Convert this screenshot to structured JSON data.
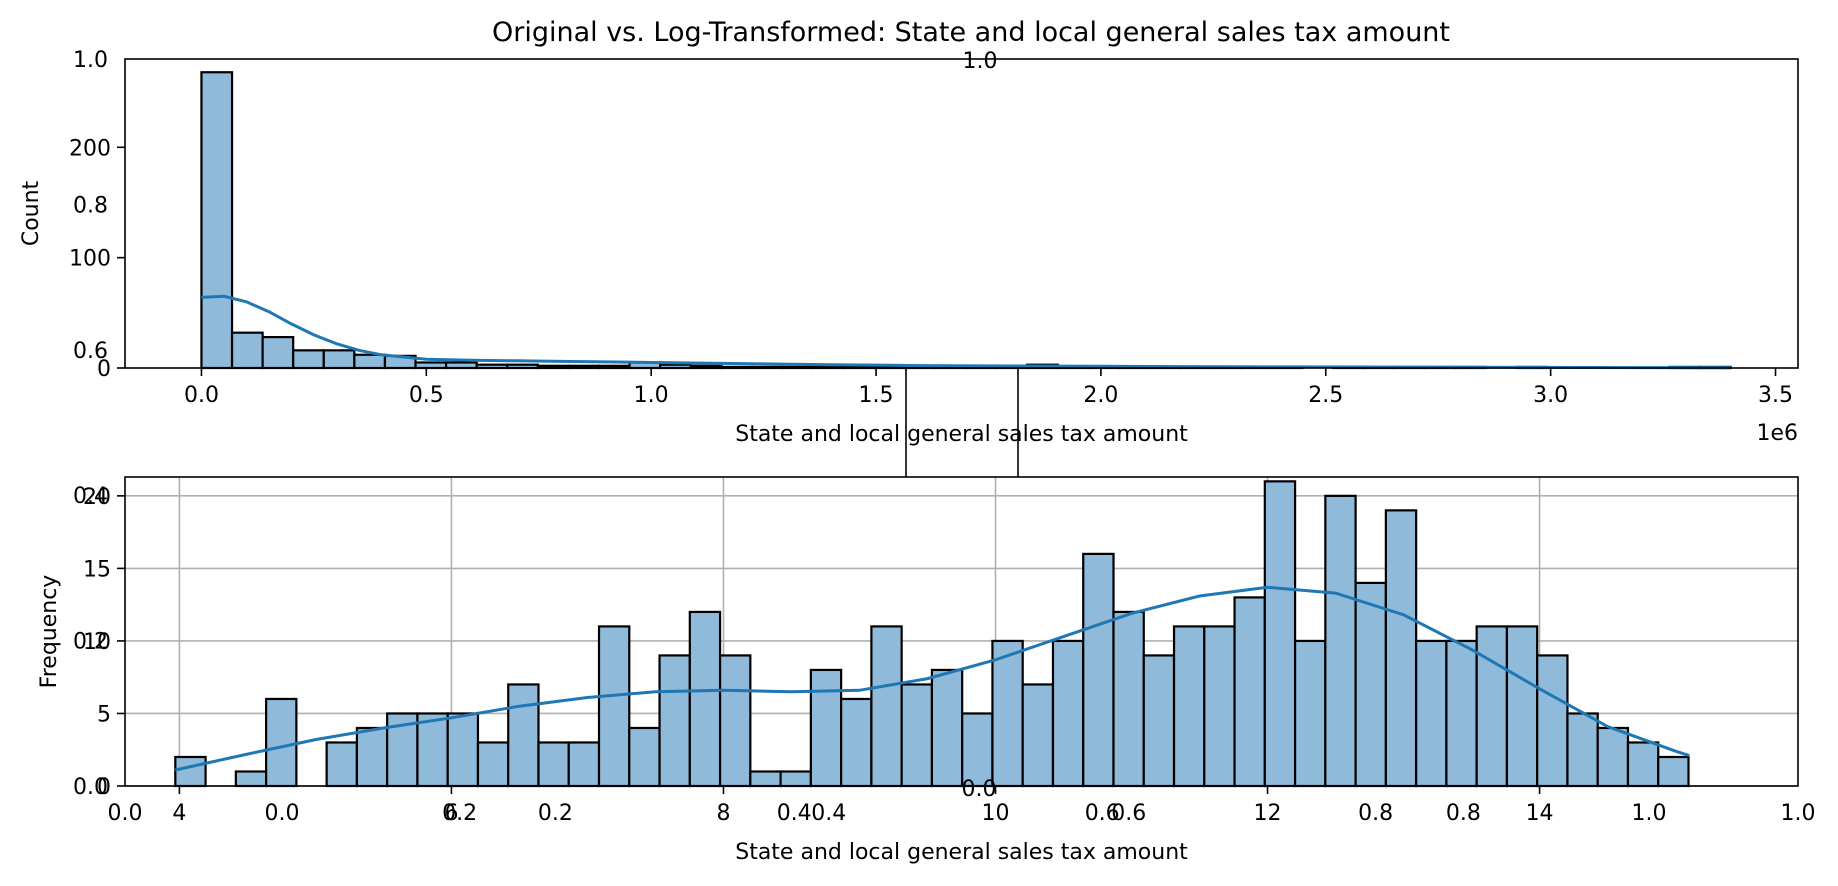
{
  "title": "Original vs. Log-Transformed: State and local general sales tax amount",
  "colors": {
    "bar_fill": "#8fbad9",
    "bar_edge": "#000000",
    "kde": "#1f77b4",
    "grid": "#b0b0b0"
  },
  "overlay_axes": {
    "tick_labels": [
      "0.0",
      "0.2",
      "0.4",
      "0.6",
      "0.8",
      "1.0"
    ],
    "y_tick_values": [
      0.0,
      0.2,
      0.4,
      0.6,
      0.8,
      1.0
    ],
    "top_label": "1.0",
    "middle_label": "0.0"
  },
  "chart_data": [
    {
      "type": "bar",
      "subtype": "histogram_with_kde",
      "title": "",
      "xlabel": "State and local general sales tax amount",
      "ylabel": "Count",
      "x_offset_label": "1e6",
      "xlim": [
        -0.17,
        3.55
      ],
      "ylim": [
        0,
        280
      ],
      "x_ticks": [
        0.0,
        0.5,
        1.0,
        1.5,
        2.0,
        2.5,
        3.0,
        3.5
      ],
      "x_tick_labels": [
        "0.0",
        "0.5",
        "1.0",
        "1.5",
        "2.0",
        "2.5",
        "3.0",
        "3.5"
      ],
      "y_ticks": [
        0,
        100,
        200
      ],
      "y_tick_labels": [
        "0",
        "100",
        "200"
      ],
      "bin_start": 0.0,
      "bin_width": 0.068,
      "counts": [
        268,
        32,
        28,
        16,
        16,
        12,
        11,
        5,
        5,
        3,
        3,
        2,
        2,
        2,
        5,
        3,
        2,
        1,
        1,
        1,
        1,
        1,
        1,
        1,
        1,
        1,
        1,
        3,
        1,
        1,
        1,
        1,
        1,
        1,
        1,
        1,
        0,
        1,
        1,
        1,
        1,
        1,
        0,
        1,
        0,
        0,
        0,
        0,
        1,
        1
      ],
      "kde": {
        "x": [
          0.0,
          0.05,
          0.1,
          0.15,
          0.2,
          0.25,
          0.3,
          0.35,
          0.4,
          0.45,
          0.5,
          0.6,
          0.7,
          0.8,
          0.9,
          1.0,
          1.2,
          1.4,
          1.6,
          1.8,
          2.0,
          2.4,
          2.8,
          3.2,
          3.4
        ],
        "y": [
          64,
          65,
          60,
          51,
          40,
          30,
          22,
          16,
          12,
          10,
          8,
          7,
          6.5,
          6,
          5.5,
          5,
          4,
          3,
          2.2,
          1.8,
          1.5,
          1,
          0.7,
          0.4,
          0.3
        ]
      },
      "grid": false
    },
    {
      "type": "bar",
      "subtype": "histogram_with_kde",
      "title": "",
      "xlabel": "State and local general sales tax amount",
      "ylabel": "Frequency",
      "xlim": [
        3.6,
        15.9
      ],
      "ylim": [
        0,
        21.3
      ],
      "x_ticks": [
        4,
        6,
        8,
        10,
        12,
        14
      ],
      "x_tick_labels": [
        "4",
        "6",
        "8",
        "10",
        "12",
        "14"
      ],
      "y_ticks": [
        0,
        5,
        10,
        15,
        20
      ],
      "y_tick_labels": [
        "0",
        "5",
        "10",
        "15",
        "20"
      ],
      "bin_start": 3.97,
      "bin_width": 0.2225,
      "counts": [
        2,
        0,
        1,
        6,
        0,
        3,
        4,
        5,
        5,
        5,
        3,
        7,
        3,
        3,
        11,
        4,
        9,
        12,
        9,
        1,
        1,
        8,
        6,
        11,
        7,
        8,
        5,
        10,
        7,
        10,
        16,
        12,
        9,
        11,
        11,
        13,
        21,
        10,
        20,
        14,
        19,
        10,
        10,
        11,
        11,
        9,
        5,
        4,
        3,
        2
      ],
      "kde": {
        "x": [
          3.97,
          4.5,
          5.0,
          5.5,
          6.0,
          6.5,
          7.0,
          7.5,
          8.0,
          8.5,
          9.0,
          9.5,
          10.0,
          10.5,
          11.0,
          11.5,
          12.0,
          12.5,
          13.0,
          13.5,
          14.0,
          14.5,
          15.0,
          15.1
        ],
        "y": [
          1.1,
          2.2,
          3.2,
          4.0,
          4.7,
          5.5,
          6.1,
          6.5,
          6.6,
          6.5,
          6.6,
          7.4,
          8.7,
          10.3,
          11.9,
          13.1,
          13.7,
          13.3,
          11.8,
          9.4,
          6.7,
          4.1,
          2.4,
          2.1
        ]
      },
      "grid": true
    }
  ]
}
